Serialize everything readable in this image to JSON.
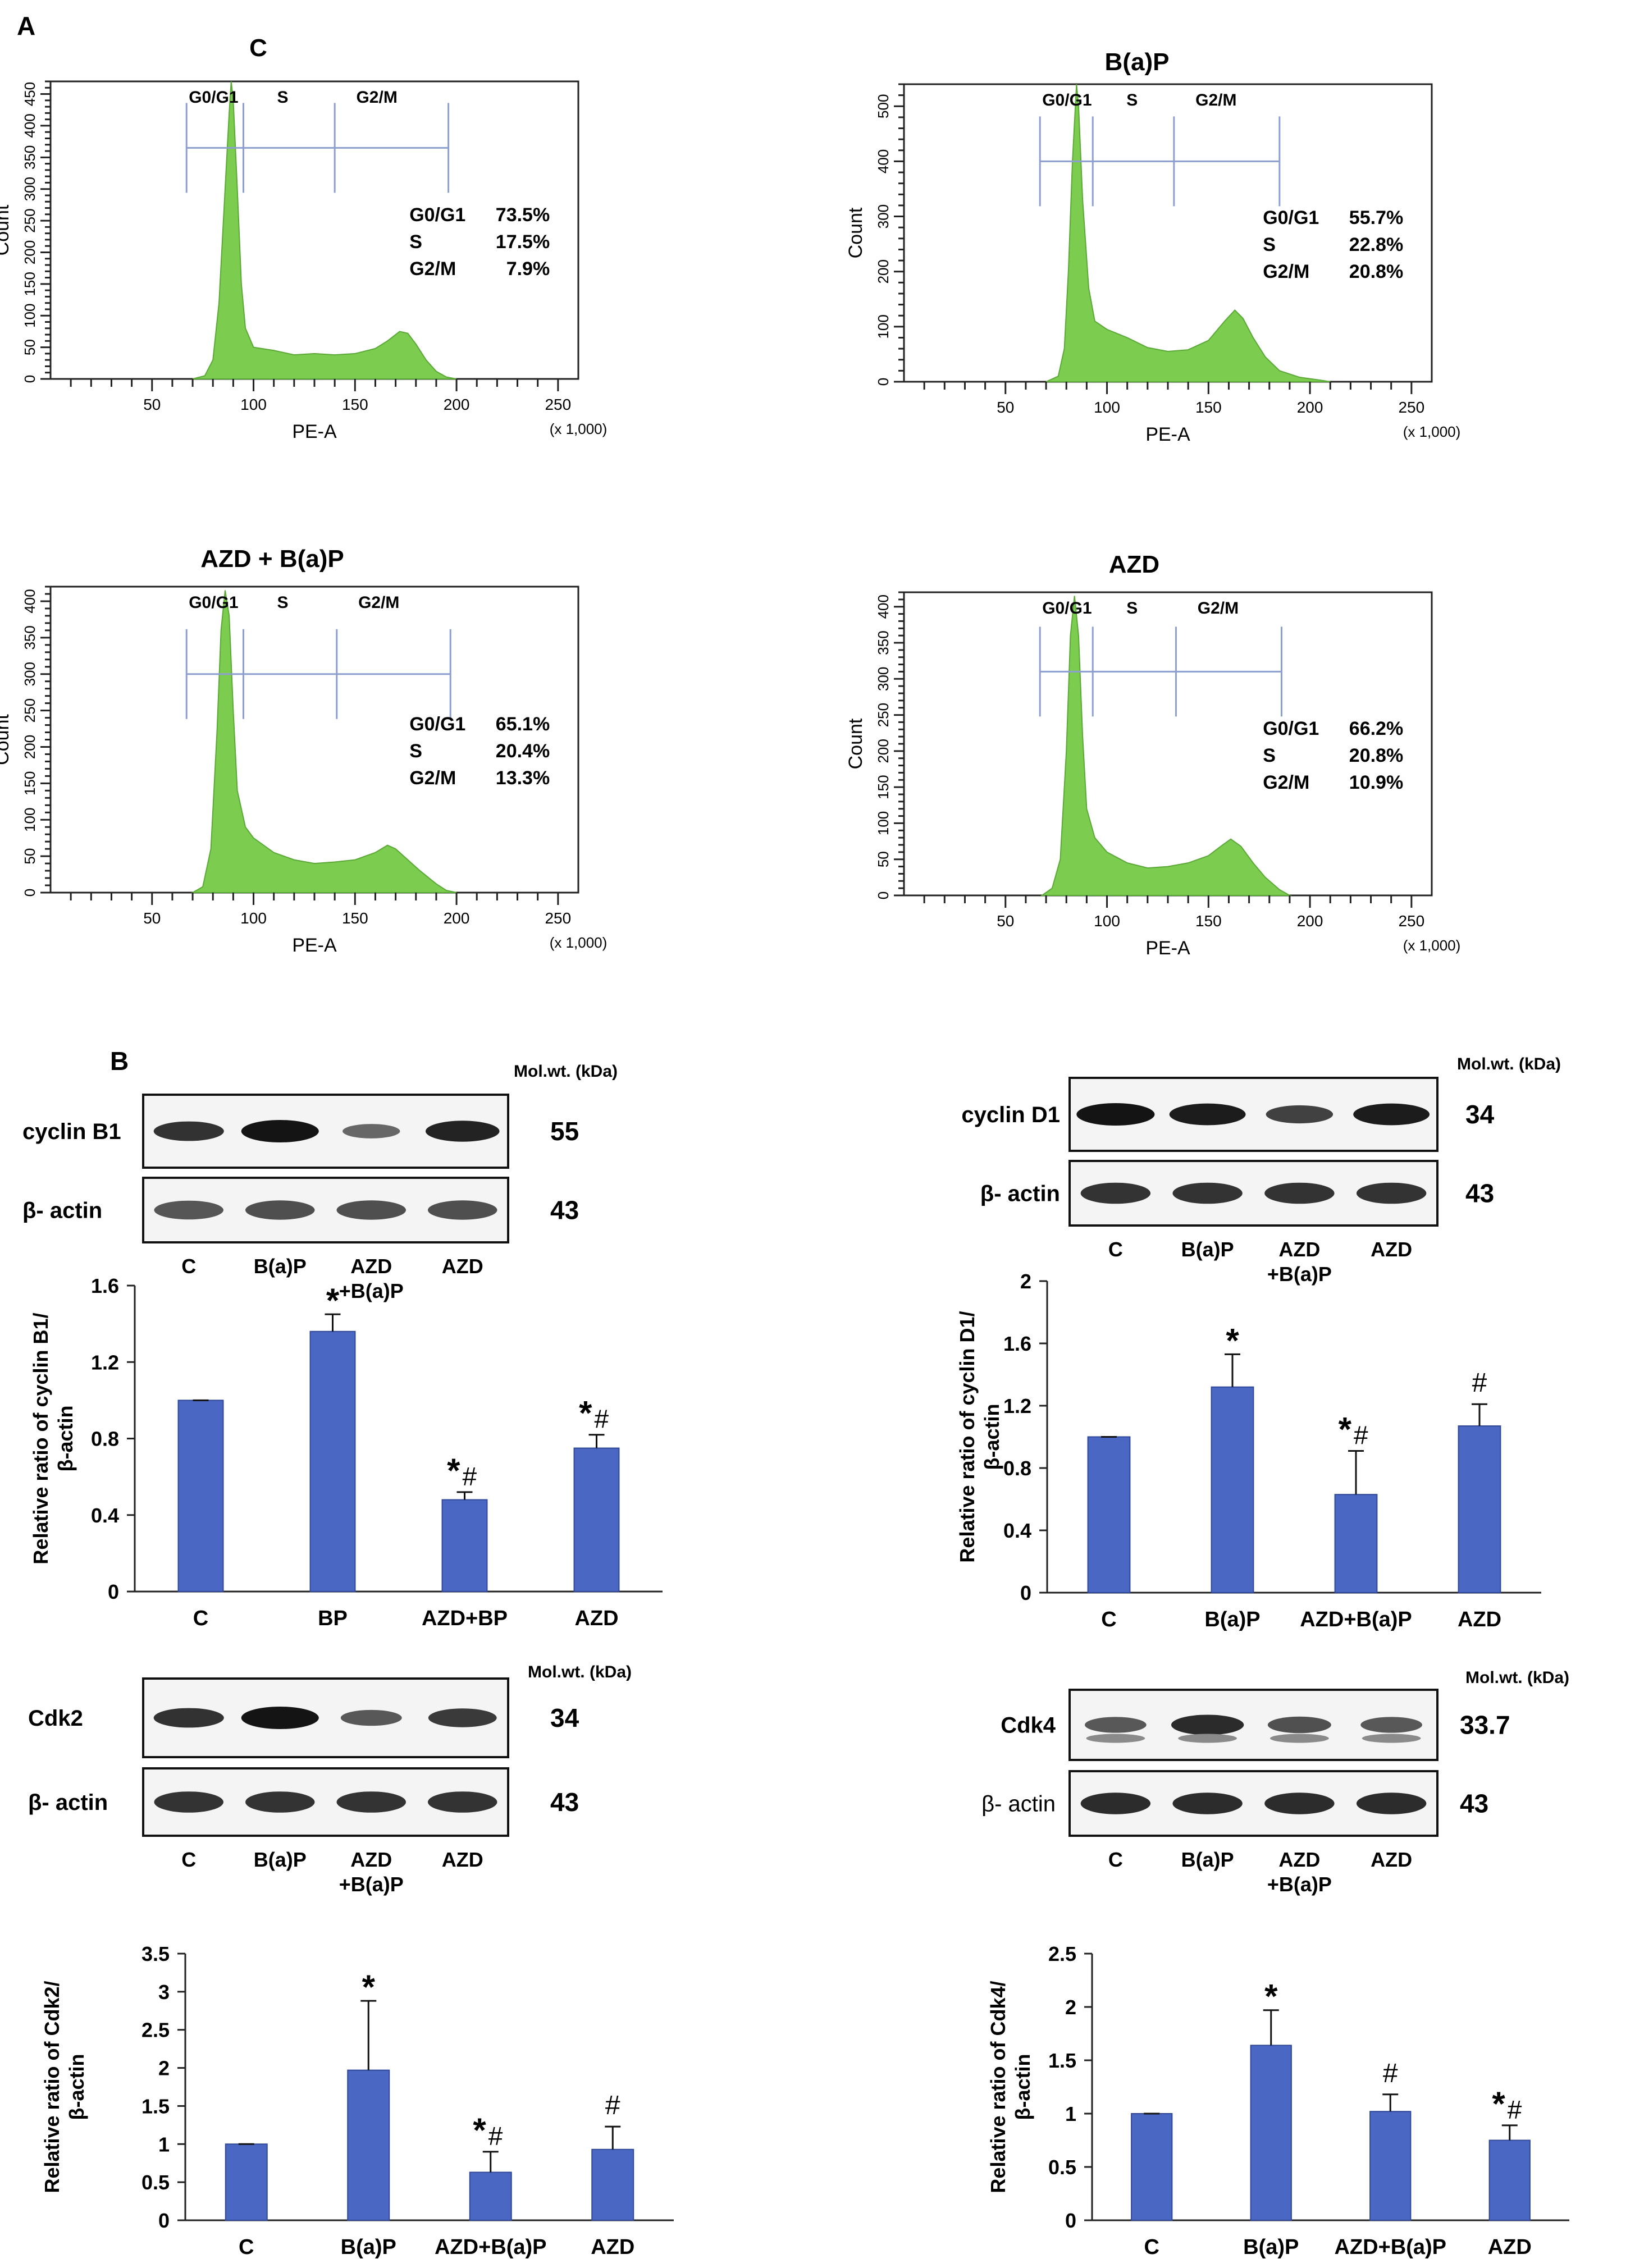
{
  "panel_a": {
    "label": "A"
  },
  "panel_b": {
    "label": "B"
  },
  "chart_data": [
    {
      "type": "area",
      "title": "C",
      "xlabel": "PE-A",
      "x_scale_note": "(x 1,000)",
      "ylabel": "Count",
      "x_ticks": [
        50,
        100,
        150,
        200,
        250
      ],
      "x_range": [
        0,
        260
      ],
      "y_ticks": [
        0,
        50,
        100,
        150,
        200,
        250,
        300,
        350,
        400,
        450
      ],
      "y_range": [
        0,
        470
      ],
      "gates": [
        "G0/G1",
        "S",
        "G2/M"
      ],
      "gate_bounds": [
        67,
        95,
        140,
        196
      ],
      "gate_y": 365,
      "stats": [
        [
          "G0/G1",
          "73.5%"
        ],
        [
          "S",
          "17.5%"
        ],
        [
          "G2/M",
          "7.9%"
        ]
      ],
      "histogram": [
        [
          70,
          0
        ],
        [
          76,
          5
        ],
        [
          80,
          30
        ],
        [
          83,
          120
        ],
        [
          86,
          300
        ],
        [
          88,
          420
        ],
        [
          89,
          470
        ],
        [
          90,
          440
        ],
        [
          92,
          300
        ],
        [
          94,
          150
        ],
        [
          96,
          80
        ],
        [
          100,
          50
        ],
        [
          110,
          45
        ],
        [
          120,
          38
        ],
        [
          130,
          40
        ],
        [
          140,
          38
        ],
        [
          150,
          40
        ],
        [
          160,
          48
        ],
        [
          166,
          60
        ],
        [
          172,
          75
        ],
        [
          176,
          72
        ],
        [
          180,
          55
        ],
        [
          185,
          30
        ],
        [
          190,
          12
        ],
        [
          195,
          3
        ],
        [
          200,
          0
        ]
      ]
    },
    {
      "type": "area",
      "title": "B(a)P",
      "xlabel": "PE-A",
      "x_scale_note": "(x 1,000)",
      "ylabel": "Count",
      "x_ticks": [
        50,
        100,
        150,
        200,
        250
      ],
      "x_range": [
        0,
        260
      ],
      "y_ticks": [
        0,
        100,
        200,
        300,
        400,
        500
      ],
      "y_range": [
        0,
        540
      ],
      "gates": [
        "G0/G1",
        "S",
        "G2/M"
      ],
      "gate_bounds": [
        67,
        93,
        133,
        185
      ],
      "gate_y": 400,
      "stats": [
        [
          "G0/G1",
          "55.7%"
        ],
        [
          "S",
          "22.8%"
        ],
        [
          "G2/M",
          "20.8%"
        ]
      ],
      "histogram": [
        [
          70,
          0
        ],
        [
          76,
          10
        ],
        [
          79,
          60
        ],
        [
          81,
          200
        ],
        [
          83,
          400
        ],
        [
          85,
          540
        ],
        [
          86,
          500
        ],
        [
          88,
          330
        ],
        [
          91,
          170
        ],
        [
          94,
          110
        ],
        [
          100,
          95
        ],
        [
          110,
          80
        ],
        [
          120,
          62
        ],
        [
          130,
          55
        ],
        [
          140,
          58
        ],
        [
          150,
          75
        ],
        [
          158,
          110
        ],
        [
          163,
          130
        ],
        [
          167,
          115
        ],
        [
          172,
          80
        ],
        [
          178,
          45
        ],
        [
          185,
          20
        ],
        [
          195,
          8
        ],
        [
          205,
          3
        ],
        [
          210,
          0
        ]
      ]
    },
    {
      "type": "area",
      "title": "AZD + B(a)P",
      "xlabel": "PE-A",
      "x_scale_note": "(x 1,000)",
      "ylabel": "Count",
      "x_ticks": [
        50,
        100,
        150,
        200,
        250
      ],
      "x_range": [
        0,
        260
      ],
      "y_ticks": [
        0,
        50,
        100,
        150,
        200,
        250,
        300,
        350,
        400
      ],
      "y_range": [
        0,
        420
      ],
      "gates": [
        "G0/G1",
        "S",
        "G2/M"
      ],
      "gate_bounds": [
        67,
        95,
        141,
        197
      ],
      "gate_y": 300,
      "stats": [
        [
          "G0/G1",
          "65.1%"
        ],
        [
          "S",
          "20.4%"
        ],
        [
          "G2/M",
          "13.3%"
        ]
      ],
      "histogram": [
        [
          70,
          0
        ],
        [
          75,
          8
        ],
        [
          79,
          60
        ],
        [
          82,
          220
        ],
        [
          84,
          360
        ],
        [
          86,
          415
        ],
        [
          88,
          380
        ],
        [
          90,
          250
        ],
        [
          92,
          140
        ],
        [
          96,
          90
        ],
        [
          100,
          75
        ],
        [
          110,
          55
        ],
        [
          120,
          45
        ],
        [
          130,
          40
        ],
        [
          140,
          42
        ],
        [
          150,
          45
        ],
        [
          160,
          55
        ],
        [
          166,
          65
        ],
        [
          170,
          60
        ],
        [
          176,
          45
        ],
        [
          182,
          30
        ],
        [
          190,
          12
        ],
        [
          195,
          3
        ],
        [
          200,
          0
        ]
      ]
    },
    {
      "type": "area",
      "title": "AZD",
      "xlabel": "PE-A",
      "x_scale_note": "(x 1,000)",
      "ylabel": "Count",
      "x_ticks": [
        50,
        100,
        150,
        200,
        250
      ],
      "x_range": [
        0,
        260
      ],
      "y_ticks": [
        0,
        50,
        100,
        150,
        200,
        250,
        300,
        350,
        400
      ],
      "y_range": [
        0,
        420
      ],
      "gates": [
        "G0/G1",
        "S",
        "G2/M"
      ],
      "gate_bounds": [
        67,
        93,
        134,
        186
      ],
      "gate_y": 310,
      "stats": [
        [
          "G0/G1",
          "66.2%"
        ],
        [
          "S",
          "20.8%"
        ],
        [
          "G2/M",
          "10.9%"
        ]
      ],
      "histogram": [
        [
          68,
          0
        ],
        [
          73,
          10
        ],
        [
          77,
          50
        ],
        [
          80,
          200
        ],
        [
          82,
          360
        ],
        [
          84,
          415
        ],
        [
          86,
          360
        ],
        [
          88,
          220
        ],
        [
          90,
          120
        ],
        [
          94,
          80
        ],
        [
          100,
          60
        ],
        [
          110,
          45
        ],
        [
          120,
          38
        ],
        [
          130,
          40
        ],
        [
          140,
          45
        ],
        [
          150,
          55
        ],
        [
          157,
          70
        ],
        [
          161,
          78
        ],
        [
          166,
          68
        ],
        [
          172,
          45
        ],
        [
          178,
          25
        ],
        [
          185,
          8
        ],
        [
          190,
          0
        ]
      ]
    },
    {
      "type": "bar",
      "categories": [
        "C",
        "BP",
        "AZD+BP",
        "AZD"
      ],
      "values": [
        1.0,
        1.36,
        0.48,
        0.75
      ],
      "errors": [
        0.0,
        0.09,
        0.04,
        0.07
      ],
      "annotations": [
        "",
        "*",
        "*#",
        "*#"
      ],
      "title": "",
      "xlabel": "",
      "ylabel": "Relative ratio of cyclin B1/ β-actin",
      "ylim": [
        0,
        1.6
      ],
      "y_ticks": [
        "0",
        "0.4",
        "0.8",
        "1.2",
        "1.6"
      ]
    },
    {
      "type": "bar",
      "categories": [
        "C",
        "B(a)P",
        "AZD+B(a)P",
        "AZD"
      ],
      "values": [
        1.0,
        1.32,
        0.63,
        1.07
      ],
      "errors": [
        0.0,
        0.21,
        0.28,
        0.14
      ],
      "annotations": [
        "",
        "*",
        "*#",
        "#"
      ],
      "title": "",
      "xlabel": "",
      "ylabel": "Relative ratio of cyclin D1/ β-actin",
      "ylim": [
        0,
        2
      ],
      "y_ticks": [
        "0",
        "0.4",
        "0.8",
        "1.2",
        "1.6",
        "2"
      ]
    },
    {
      "type": "bar",
      "categories": [
        "C",
        "B(a)P",
        "AZD+B(a)P",
        "AZD"
      ],
      "values": [
        1.0,
        1.97,
        0.63,
        0.93
      ],
      "errors": [
        0.0,
        0.91,
        0.27,
        0.3
      ],
      "annotations": [
        "",
        "*",
        "*#",
        "#"
      ],
      "title": "",
      "xlabel": "",
      "ylabel": "Relative ratio of Cdk2/β-actin",
      "ylim": [
        0,
        3.5
      ],
      "y_ticks": [
        "0",
        "0.5",
        "1",
        "1.5",
        "2",
        "2.5",
        "3",
        "3.5"
      ]
    },
    {
      "type": "bar",
      "categories": [
        "C",
        "B(a)P",
        "AZD+B(a)P",
        "AZD"
      ],
      "values": [
        1.0,
        1.64,
        1.02,
        0.75
      ],
      "errors": [
        0.0,
        0.33,
        0.16,
        0.14
      ],
      "annotations": [
        "",
        "*",
        "#",
        "*#"
      ],
      "title": "",
      "xlabel": "",
      "ylabel": "Relative ratio of Cdk4/β-actin",
      "ylim": [
        0,
        2.5
      ],
      "y_ticks": [
        "0",
        "0.5",
        "1",
        "1.5",
        "2",
        "2.5"
      ]
    }
  ],
  "blots": [
    {
      "protein": "cyclin B1",
      "protein_mw": "55",
      "actin": "β- actin",
      "actin_mw": "43",
      "mw_header": "Mol.wt. (kDa)",
      "lanes": [
        "C",
        "B(a)P",
        "AZD",
        "AZD"
      ],
      "lanes_line2": [
        "",
        "",
        "+B(a)P",
        ""
      ],
      "band_intensity": [
        0.8,
        1.0,
        0.45,
        0.9
      ],
      "actin_intensity": [
        0.6,
        0.65,
        0.65,
        0.65
      ]
    },
    {
      "protein": "cyclin D1",
      "protein_mw": "34",
      "actin": "β- actin",
      "actin_mw": "43",
      "mw_header": "Mol.wt. (kDa)",
      "lanes": [
        "C",
        "B(a)P",
        "AZD",
        "AZD"
      ],
      "lanes_line2": [
        "",
        "",
        "+B(a)P",
        ""
      ],
      "band_intensity": [
        1.0,
        0.95,
        0.7,
        0.95
      ],
      "actin_intensity": [
        0.85,
        0.85,
        0.85,
        0.85
      ]
    },
    {
      "protein": "Cdk2",
      "protein_mw": "34",
      "actin": "β- actin",
      "actin_mw": "43",
      "mw_header": "Mol.wt. (kDa)",
      "lanes": [
        "C",
        "B(a)P",
        "AZD",
        "AZD"
      ],
      "lanes_line2": [
        "",
        "",
        "+B(a)P",
        ""
      ],
      "band_intensity": [
        0.8,
        1.0,
        0.55,
        0.75
      ],
      "actin_intensity": [
        0.85,
        0.85,
        0.85,
        0.85
      ]
    },
    {
      "protein": "Cdk4",
      "protein_mw": "33.7",
      "actin": "β- actin",
      "actin_mw": "43",
      "mw_header": "Mol.wt. (kDa)",
      "lanes": [
        "C",
        "B(a)P",
        "AZD",
        "AZD"
      ],
      "lanes_line2": [
        "",
        "",
        "+B(a)P",
        ""
      ],
      "band_intensity": [
        0.55,
        0.85,
        0.6,
        0.55
      ],
      "actin_intensity": [
        0.9,
        0.9,
        0.9,
        0.9
      ]
    }
  ]
}
